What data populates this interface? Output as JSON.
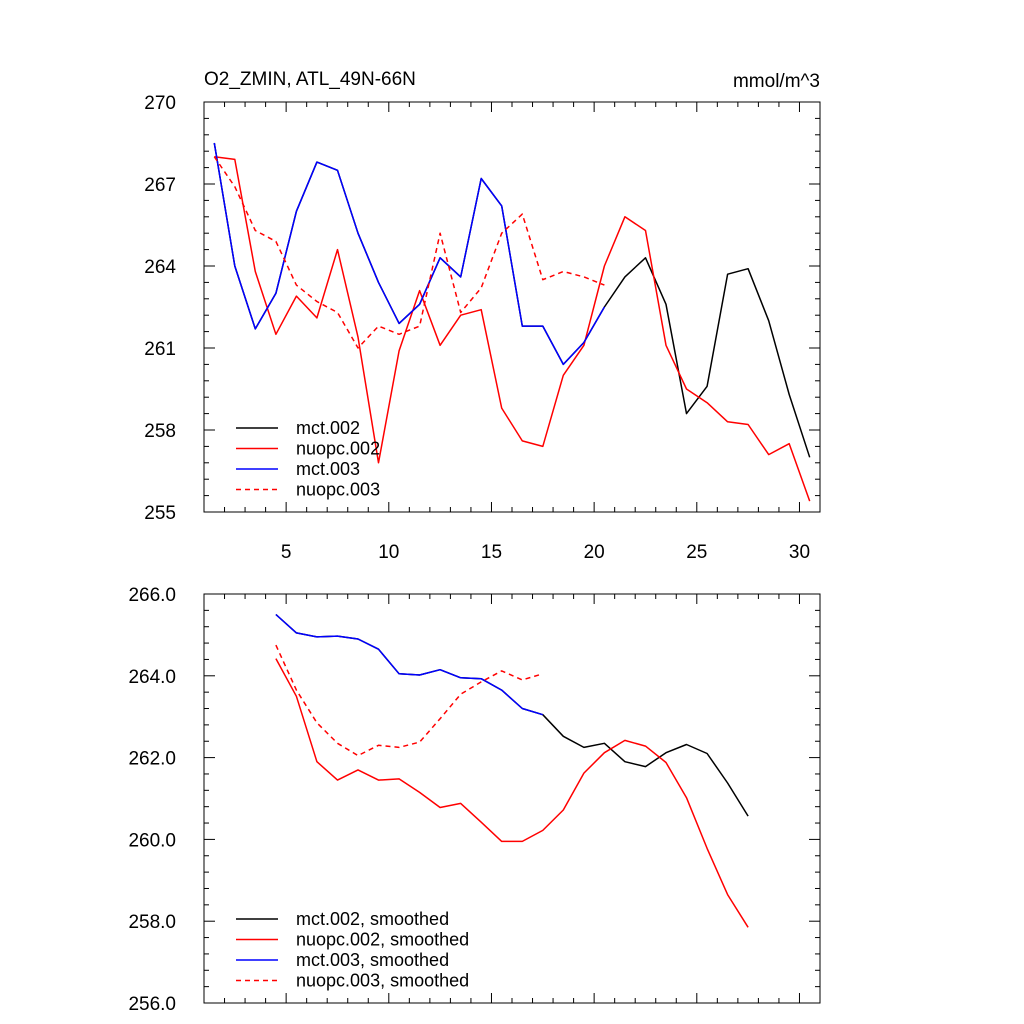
{
  "chart_data": [
    {
      "type": "line",
      "title": "O2_ZMIN, ATL_49N-66N",
      "units": "mmol/m^3",
      "xlim": [
        1,
        31
      ],
      "ylim": [
        255,
        270
      ],
      "x_ticks": [
        5,
        10,
        15,
        20,
        25,
        30
      ],
      "x_tick_labels": [
        "5",
        "10",
        "15",
        "20",
        "25",
        "30"
      ],
      "y_ticks": [
        255,
        258,
        261,
        264,
        267,
        270
      ],
      "y_tick_labels": [
        "255",
        "258",
        "261",
        "264",
        "267",
        "270"
      ],
      "legend_position": "bottom-left",
      "series": [
        {
          "name": "mct.002",
          "color": "#000000",
          "dash": "solid",
          "x": [
            1.5,
            2.5,
            3.5,
            4.5,
            5.5,
            6.5,
            7.5,
            8.5,
            9.5,
            10.5,
            11.5,
            12.5,
            13.5,
            14.5,
            15.5,
            16.5,
            17.5,
            18.5,
            19.5,
            20.5,
            21.5,
            22.5,
            23.5,
            24.5,
            25.5,
            26.5,
            27.5,
            28.5,
            29.5,
            30.5
          ],
          "values": [
            268.5,
            264.0,
            261.7,
            263.0,
            266.0,
            267.8,
            267.5,
            265.2,
            263.4,
            261.9,
            262.6,
            264.3,
            263.6,
            267.2,
            266.2,
            261.8,
            261.8,
            260.4,
            261.2,
            262.5,
            263.6,
            264.3,
            262.6,
            258.6,
            259.6,
            263.7,
            263.9,
            262.0,
            259.3,
            257.0
          ]
        },
        {
          "name": "nuopc.002",
          "color": "#ff0000",
          "dash": "solid",
          "x": [
            1.5,
            2.5,
            3.5,
            4.5,
            5.5,
            6.5,
            7.5,
            8.5,
            9.5,
            10.5,
            11.5,
            12.5,
            13.5,
            14.5,
            15.5,
            16.5,
            17.5,
            18.5,
            19.5,
            20.5,
            21.5,
            22.5,
            23.5,
            24.5,
            25.5,
            26.5,
            27.5,
            28.5,
            29.5,
            30.5
          ],
          "values": [
            268.0,
            267.9,
            263.8,
            261.5,
            262.9,
            262.1,
            264.6,
            261.4,
            256.8,
            260.9,
            263.1,
            261.1,
            262.2,
            262.4,
            258.8,
            257.6,
            257.4,
            260.0,
            261.1,
            264.0,
            265.8,
            265.3,
            261.1,
            259.5,
            259.0,
            258.3,
            258.2,
            257.1,
            257.5,
            255.4
          ]
        },
        {
          "name": "mct.003",
          "color": "#0000ff",
          "dash": "solid",
          "x": [
            1.5,
            2.5,
            3.5,
            4.5,
            5.5,
            6.5,
            7.5,
            8.5,
            9.5,
            10.5,
            11.5,
            12.5,
            13.5,
            14.5,
            15.5,
            16.5,
            17.5,
            18.5,
            19.5,
            20.5
          ],
          "values": [
            268.5,
            264.0,
            261.7,
            263.0,
            266.0,
            267.8,
            267.5,
            265.2,
            263.4,
            261.9,
            262.6,
            264.3,
            263.6,
            267.2,
            266.2,
            261.8,
            261.8,
            260.4,
            261.2,
            262.5
          ]
        },
        {
          "name": "nuopc.003",
          "color": "#ff0000",
          "dash": "dashed",
          "x": [
            1.5,
            2.5,
            3.5,
            4.5,
            5.5,
            6.5,
            7.5,
            8.5,
            9.5,
            10.5,
            11.5,
            12.5,
            13.5,
            14.5,
            15.5,
            16.5,
            17.5,
            18.5,
            19.5,
            20.5
          ],
          "values": [
            268.0,
            266.9,
            265.3,
            264.9,
            263.3,
            262.7,
            262.3,
            261.0,
            261.8,
            261.5,
            261.8,
            265.2,
            262.3,
            263.2,
            265.2,
            265.9,
            263.5,
            263.8,
            263.6,
            263.3
          ]
        }
      ]
    },
    {
      "type": "line",
      "title": "",
      "xlim": [
        1,
        31
      ],
      "ylim": [
        256,
        266
      ],
      "x_ticks": [
        5,
        10,
        15,
        20,
        25,
        30
      ],
      "x_tick_labels": [],
      "y_ticks": [
        256,
        258,
        260,
        262,
        264,
        266
      ],
      "y_tick_labels": [
        "256.0",
        "258.0",
        "260.0",
        "262.0",
        "264.0",
        "266.0"
      ],
      "legend_position": "bottom-left",
      "series": [
        {
          "name": "mct.002, smoothed",
          "color": "#000000",
          "dash": "solid",
          "x": [
            4.5,
            5.5,
            6.5,
            7.5,
            8.5,
            9.5,
            10.5,
            11.5,
            12.5,
            13.5,
            14.5,
            15.5,
            16.5,
            17.5,
            18.5,
            19.5,
            20.5,
            21.5,
            22.5,
            23.5,
            24.5,
            25.5,
            26.5,
            27.5
          ],
          "values": [
            265.5,
            265.05,
            264.95,
            264.97,
            264.9,
            264.65,
            264.05,
            264.02,
            264.15,
            263.95,
            263.93,
            263.65,
            263.2,
            263.05,
            262.52,
            262.25,
            262.35,
            261.9,
            261.78,
            262.12,
            262.32,
            262.1,
            261.38,
            260.57
          ]
        },
        {
          "name": "nuopc.002, smoothed",
          "color": "#ff0000",
          "dash": "solid",
          "x": [
            4.5,
            5.5,
            6.5,
            7.5,
            8.5,
            9.5,
            10.5,
            11.5,
            12.5,
            13.5,
            14.5,
            15.5,
            16.5,
            17.5,
            18.5,
            19.5,
            20.5,
            21.5,
            22.5,
            23.5,
            24.5,
            25.5,
            26.5,
            27.5
          ],
          "values": [
            264.42,
            263.5,
            261.9,
            261.45,
            261.7,
            261.45,
            261.48,
            261.15,
            260.78,
            260.88,
            260.42,
            259.95,
            259.95,
            260.22,
            260.72,
            261.62,
            262.12,
            262.42,
            262.28,
            261.88,
            261.02,
            259.78,
            258.65,
            257.85
          ]
        },
        {
          "name": "mct.003, smoothed",
          "color": "#0000ff",
          "dash": "solid",
          "x": [
            4.5,
            5.5,
            6.5,
            7.5,
            8.5,
            9.5,
            10.5,
            11.5,
            12.5,
            13.5,
            14.5,
            15.5,
            16.5,
            17.5
          ],
          "values": [
            265.5,
            265.05,
            264.95,
            264.97,
            264.9,
            264.65,
            264.05,
            264.02,
            264.15,
            263.95,
            263.93,
            263.65,
            263.2,
            263.05
          ]
        },
        {
          "name": "nuopc.003, smoothed",
          "color": "#ff0000",
          "dash": "dashed",
          "x": [
            4.5,
            5.5,
            6.5,
            7.5,
            8.5,
            9.5,
            10.5,
            11.5,
            12.5,
            13.5,
            14.5,
            15.5,
            16.5,
            17.5
          ],
          "values": [
            264.75,
            263.65,
            262.85,
            262.35,
            262.05,
            262.3,
            262.25,
            262.38,
            262.95,
            263.55,
            263.85,
            264.12,
            263.9,
            264.05
          ]
        }
      ]
    }
  ]
}
